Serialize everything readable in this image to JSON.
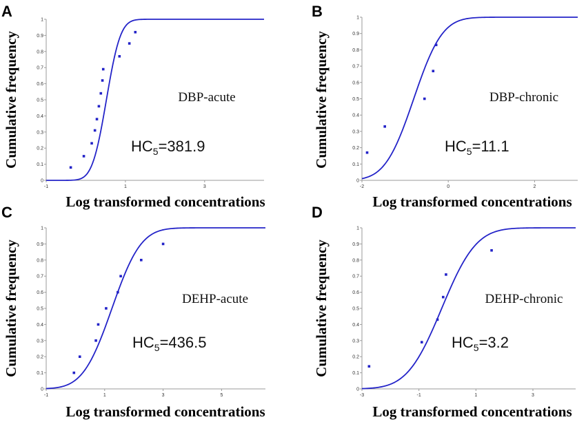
{
  "colors": {
    "curve": "#2323c8",
    "points": "#2323c8",
    "axis": "#9a9a9a"
  },
  "chart_data": [
    {
      "type": "scatter",
      "panel_label": "A",
      "ylabel": "Cumulative frequency",
      "xlabel": "Log transformed concentrations",
      "annotation": "DBP-acute",
      "hc_prefix": "HC",
      "hc_sub": "5",
      "hc_value": "=381.9",
      "xlim": [
        -1,
        4.5
      ],
      "ylim": [
        0,
        1
      ],
      "xticks": [
        -1,
        1,
        3
      ],
      "xtick_labels": [
        "-1",
        "1",
        "3"
      ],
      "yticks": [
        0,
        0.1,
        0.2,
        0.3,
        0.4,
        0.5,
        0.6,
        0.7,
        0.8,
        0.9,
        1
      ],
      "ytick_labels": [
        "0",
        "0.1",
        "0.2",
        "0.3",
        "0.4",
        "0.5",
        "0.6",
        "0.7",
        "0.8",
        "0.9",
        "1"
      ],
      "points": [
        [
          -0.38,
          0.08
        ],
        [
          -0.05,
          0.15
        ],
        [
          0.15,
          0.23
        ],
        [
          0.23,
          0.31
        ],
        [
          0.28,
          0.38
        ],
        [
          0.33,
          0.46
        ],
        [
          0.38,
          0.54
        ],
        [
          0.42,
          0.62
        ],
        [
          0.44,
          0.69
        ],
        [
          0.85,
          0.77
        ],
        [
          1.1,
          0.85
        ],
        [
          1.25,
          0.92
        ]
      ],
      "fit": {
        "mu": 0.52,
        "sigma": 0.28
      }
    },
    {
      "type": "scatter",
      "panel_label": "B",
      "ylabel": "Cumulative frequency",
      "xlabel": "Log transformed concentrations",
      "annotation": "DBP-chronic",
      "hc_prefix": "HC",
      "hc_sub": "5",
      "hc_value": "=11.1",
      "xlim": [
        -2,
        3
      ],
      "ylim": [
        0,
        1
      ],
      "xticks": [
        -2,
        0,
        2
      ],
      "xtick_labels": [
        "-2",
        "0",
        "2"
      ],
      "yticks": [
        0,
        0.1,
        0.2,
        0.3,
        0.4,
        0.5,
        0.6,
        0.7,
        0.8,
        0.9,
        1
      ],
      "ytick_labels": [
        "0",
        "0.1",
        "0.2",
        "0.3",
        "0.4",
        "0.5",
        "0.6",
        "0.7",
        "0.8",
        "0.9",
        "1"
      ],
      "points": [
        [
          -1.88,
          0.17
        ],
        [
          -1.47,
          0.33
        ],
        [
          -0.55,
          0.5
        ],
        [
          -0.35,
          0.67
        ],
        [
          -0.28,
          0.83
        ]
      ],
      "fit": {
        "mu": -0.8,
        "sigma": 0.52
      }
    },
    {
      "type": "scatter",
      "panel_label": "C",
      "ylabel": "Cumulative frequency",
      "xlabel": "Log transformed concentrations",
      "annotation": "DEHP-acute",
      "hc_prefix": "HC",
      "hc_sub": "5",
      "hc_value": "=436.5",
      "xlim": [
        -1,
        6.5
      ],
      "ylim": [
        0,
        1
      ],
      "xticks": [
        -1,
        1,
        3,
        5
      ],
      "xtick_labels": [
        "-1",
        "1",
        "3",
        "5"
      ],
      "yticks": [
        0,
        0.1,
        0.2,
        0.3,
        0.4,
        0.5,
        0.6,
        0.7,
        0.8,
        0.9,
        1
      ],
      "ytick_labels": [
        "0",
        "0.1",
        "0.2",
        "0.3",
        "0.4",
        "0.5",
        "0.6",
        "0.7",
        "0.8",
        "0.9",
        "1"
      ],
      "points": [
        [
          -0.05,
          0.1
        ],
        [
          0.15,
          0.2
        ],
        [
          0.7,
          0.3
        ],
        [
          0.78,
          0.4
        ],
        [
          1.05,
          0.5
        ],
        [
          1.45,
          0.6
        ],
        [
          1.55,
          0.7
        ],
        [
          2.25,
          0.8
        ],
        [
          3.0,
          0.9
        ]
      ],
      "fit": {
        "mu": 1.25,
        "sigma": 0.78
      }
    },
    {
      "type": "scatter",
      "panel_label": "D",
      "ylabel": "Cumulative frequency",
      "xlabel": "Log transformed concentrations",
      "annotation": "DEHP-chronic",
      "hc_prefix": "HC",
      "hc_sub": "5",
      "hc_value": "=3.2",
      "xlim": [
        -3,
        4.5
      ],
      "ylim": [
        0,
        1
      ],
      "xticks": [
        -3,
        -1,
        1,
        3
      ],
      "xtick_labels": [
        "-3",
        "-1",
        "1",
        "3"
      ],
      "yticks": [
        0,
        0.1,
        0.2,
        0.3,
        0.4,
        0.5,
        0.6,
        0.7,
        0.8,
        0.9,
        1
      ],
      "ytick_labels": [
        "0",
        "0.1",
        "0.2",
        "0.3",
        "0.4",
        "0.5",
        "0.6",
        "0.7",
        "0.8",
        "0.9",
        "1"
      ],
      "points": [
        [
          -2.75,
          0.14
        ],
        [
          -0.9,
          0.29
        ],
        [
          -0.35,
          0.43
        ],
        [
          -0.15,
          0.57
        ],
        [
          -0.05,
          0.71
        ],
        [
          1.55,
          0.86
        ]
      ],
      "fit": {
        "mu": -0.2,
        "sigma": 0.95
      }
    }
  ]
}
